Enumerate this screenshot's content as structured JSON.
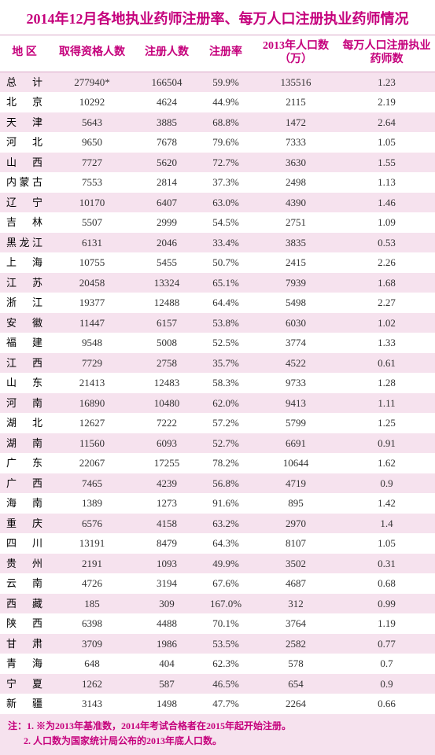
{
  "title": "2014年12月各地执业药师注册率、每万人口注册执业药师情况",
  "columns": [
    "地 区",
    "取得资格人数",
    "注册人数",
    "注册率",
    "2013年人口数（万）",
    "每万人口注册执业药师数"
  ],
  "rows": [
    {
      "region": "总 计",
      "qualified": "277940*",
      "registered": "166504",
      "rate": "59.9%",
      "pop": "135516",
      "per10k": "1.23"
    },
    {
      "region": "北 京",
      "qualified": "10292",
      "registered": "4624",
      "rate": "44.9%",
      "pop": "2115",
      "per10k": "2.19"
    },
    {
      "region": "天 津",
      "qualified": "5643",
      "registered": "3885",
      "rate": "68.8%",
      "pop": "1472",
      "per10k": "2.64"
    },
    {
      "region": "河 北",
      "qualified": "9650",
      "registered": "7678",
      "rate": "79.6%",
      "pop": "7333",
      "per10k": "1.05"
    },
    {
      "region": "山 西",
      "qualified": "7727",
      "registered": "5620",
      "rate": "72.7%",
      "pop": "3630",
      "per10k": "1.55"
    },
    {
      "region": "内蒙古",
      "qualified": "7553",
      "registered": "2814",
      "rate": "37.3%",
      "pop": "2498",
      "per10k": "1.13"
    },
    {
      "region": "辽 宁",
      "qualified": "10170",
      "registered": "6407",
      "rate": "63.0%",
      "pop": "4390",
      "per10k": "1.46"
    },
    {
      "region": "吉 林",
      "qualified": "5507",
      "registered": "2999",
      "rate": "54.5%",
      "pop": "2751",
      "per10k": "1.09"
    },
    {
      "region": "黑龙江",
      "qualified": "6131",
      "registered": "2046",
      "rate": "33.4%",
      "pop": "3835",
      "per10k": "0.53"
    },
    {
      "region": "上 海",
      "qualified": "10755",
      "registered": "5455",
      "rate": "50.7%",
      "pop": "2415",
      "per10k": "2.26"
    },
    {
      "region": "江 苏",
      "qualified": "20458",
      "registered": "13324",
      "rate": "65.1%",
      "pop": "7939",
      "per10k": "1.68"
    },
    {
      "region": "浙 江",
      "qualified": "19377",
      "registered": "12488",
      "rate": "64.4%",
      "pop": "5498",
      "per10k": "2.27"
    },
    {
      "region": "安 徽",
      "qualified": "11447",
      "registered": "6157",
      "rate": "53.8%",
      "pop": "6030",
      "per10k": "1.02"
    },
    {
      "region": "福 建",
      "qualified": "9548",
      "registered": "5008",
      "rate": "52.5%",
      "pop": "3774",
      "per10k": "1.33"
    },
    {
      "region": "江 西",
      "qualified": "7729",
      "registered": "2758",
      "rate": "35.7%",
      "pop": "4522",
      "per10k": "0.61"
    },
    {
      "region": "山 东",
      "qualified": "21413",
      "registered": "12483",
      "rate": "58.3%",
      "pop": "9733",
      "per10k": "1.28"
    },
    {
      "region": "河 南",
      "qualified": "16890",
      "registered": "10480",
      "rate": "62.0%",
      "pop": "9413",
      "per10k": "1.11"
    },
    {
      "region": "湖 北",
      "qualified": "12627",
      "registered": "7222",
      "rate": "57.2%",
      "pop": "5799",
      "per10k": "1.25"
    },
    {
      "region": "湖 南",
      "qualified": "11560",
      "registered": "6093",
      "rate": "52.7%",
      "pop": "6691",
      "per10k": "0.91"
    },
    {
      "region": "广 东",
      "qualified": "22067",
      "registered": "17255",
      "rate": "78.2%",
      "pop": "10644",
      "per10k": "1.62"
    },
    {
      "region": "广 西",
      "qualified": "7465",
      "registered": "4239",
      "rate": "56.8%",
      "pop": "4719",
      "per10k": "0.9"
    },
    {
      "region": "海 南",
      "qualified": "1389",
      "registered": "1273",
      "rate": "91.6%",
      "pop": "895",
      "per10k": "1.42"
    },
    {
      "region": "重 庆",
      "qualified": "6576",
      "registered": "4158",
      "rate": "63.2%",
      "pop": "2970",
      "per10k": "1.4"
    },
    {
      "region": "四 川",
      "qualified": "13191",
      "registered": "8479",
      "rate": "64.3%",
      "pop": "8107",
      "per10k": "1.05"
    },
    {
      "region": "贵 州",
      "qualified": "2191",
      "registered": "1093",
      "rate": "49.9%",
      "pop": "3502",
      "per10k": "0.31"
    },
    {
      "region": "云 南",
      "qualified": "4726",
      "registered": "3194",
      "rate": "67.6%",
      "pop": "4687",
      "per10k": "0.68"
    },
    {
      "region": "西 藏",
      "qualified": "185",
      "registered": "309",
      "rate": "167.0%",
      "pop": "312",
      "per10k": "0.99"
    },
    {
      "region": "陕 西",
      "qualified": "6398",
      "registered": "4488",
      "rate": "70.1%",
      "pop": "3764",
      "per10k": "1.19"
    },
    {
      "region": "甘 肃",
      "qualified": "3709",
      "registered": "1986",
      "rate": "53.5%",
      "pop": "2582",
      "per10k": "0.77"
    },
    {
      "region": "青 海",
      "qualified": "648",
      "registered": "404",
      "rate": "62.3%",
      "pop": "578",
      "per10k": "0.7"
    },
    {
      "region": "宁 夏",
      "qualified": "1262",
      "registered": "587",
      "rate": "46.5%",
      "pop": "654",
      "per10k": "0.9"
    },
    {
      "region": "新 疆",
      "qualified": "3143",
      "registered": "1498",
      "rate": "47.7%",
      "pop": "2264",
      "per10k": "0.66"
    }
  ],
  "footnotes": [
    "注：1. ※为2013年基准数，2014年考试合格者在2015年起开始注册。",
    "2. 人口数为国家统计局公布的2013年底人口数。"
  ],
  "colors": {
    "accent": "#c5007c",
    "stripe": "#f6e2ee",
    "background": "#ffffff",
    "border": "#d9a8c8"
  }
}
